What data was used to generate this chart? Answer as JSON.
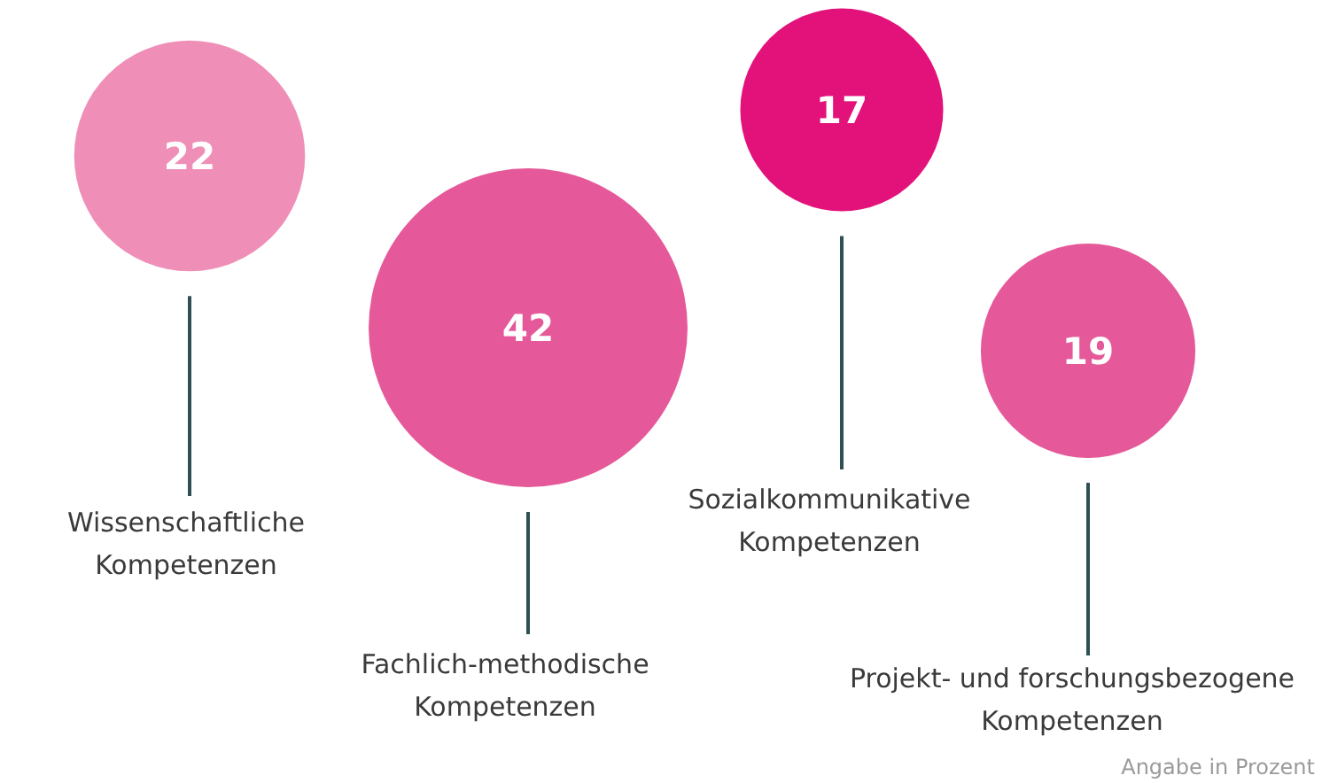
{
  "chart_data": {
    "type": "other",
    "categories": [
      "Wissenschaftliche Kompetenzen",
      "Fachlich-methodische Kompetenzen",
      "Sozialkommunikative Kompetenzen",
      "Projekt- und forschungsbezogene Kompetenzen"
    ],
    "values": [
      22,
      42,
      17,
      19
    ],
    "colors": [
      "#ef8fb8",
      "#e5599a",
      "#e3127b",
      "#e5599a"
    ],
    "data_labels": true,
    "annotations": [
      "Angabe in Prozent"
    ]
  }
}
